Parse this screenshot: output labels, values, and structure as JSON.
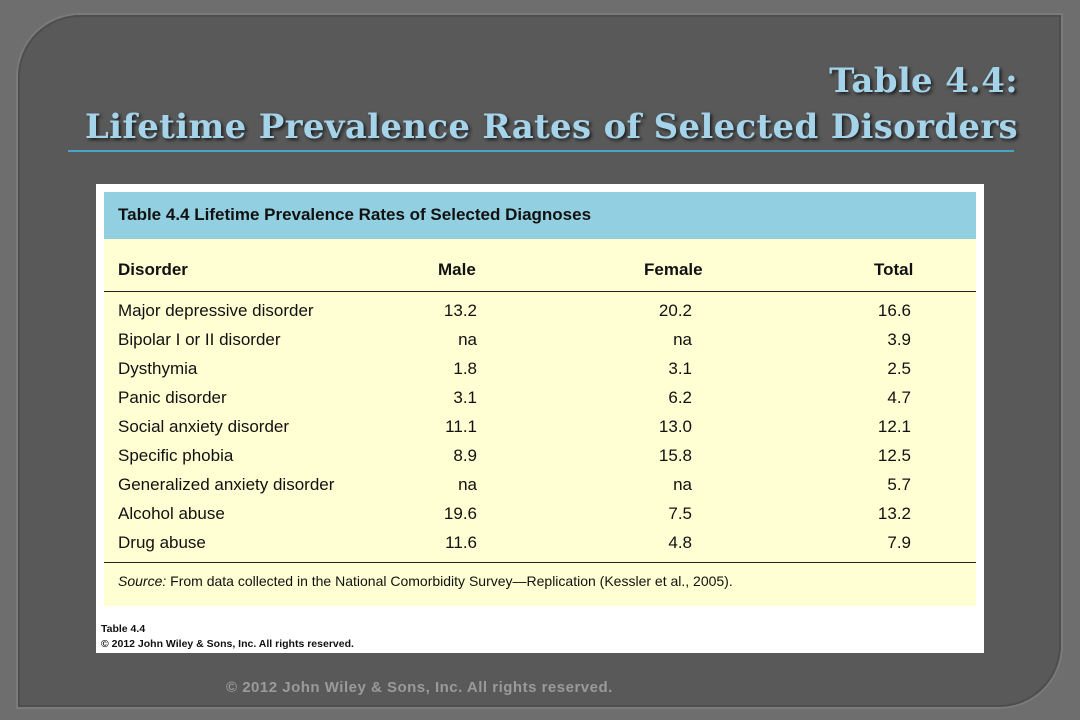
{
  "slide": {
    "title_line1": "Table 4.4:",
    "title_line2": "Lifetime Prevalence Rates of Selected Disorders",
    "footer": "© 2012 John Wiley & Sons, Inc. All rights reserved."
  },
  "table": {
    "title": "Table 4.4 Lifetime Prevalence Rates of Selected Diagnoses",
    "columns": [
      "Disorder",
      "Male",
      "Female",
      "Total"
    ],
    "rows": [
      [
        "Major depressive disorder",
        "13.2",
        "20.2",
        "16.6"
      ],
      [
        "Bipolar I or II disorder",
        "na",
        "na",
        "3.9"
      ],
      [
        "Dysthymia",
        "1.8",
        "3.1",
        "2.5"
      ],
      [
        "Panic disorder",
        "3.1",
        "6.2",
        "4.7"
      ],
      [
        "Social anxiety disorder",
        "11.1",
        "13.0",
        "12.1"
      ],
      [
        "Specific phobia",
        "8.9",
        "15.8",
        "12.5"
      ],
      [
        "Generalized anxiety disorder",
        "na",
        "na",
        "5.7"
      ],
      [
        "Alcohol abuse",
        "19.6",
        "7.5",
        "13.2"
      ],
      [
        "Drug abuse",
        "11.6",
        "4.8",
        "7.9"
      ]
    ],
    "source_label": "Source:",
    "source_text": " From data collected in the National Comorbidity Survey—Replication (Kessler et al., 2005).",
    "credit_line1": "Table 4.4",
    "credit_line2": "© 2012 John Wiley & Sons, Inc. All rights reserved."
  }
}
